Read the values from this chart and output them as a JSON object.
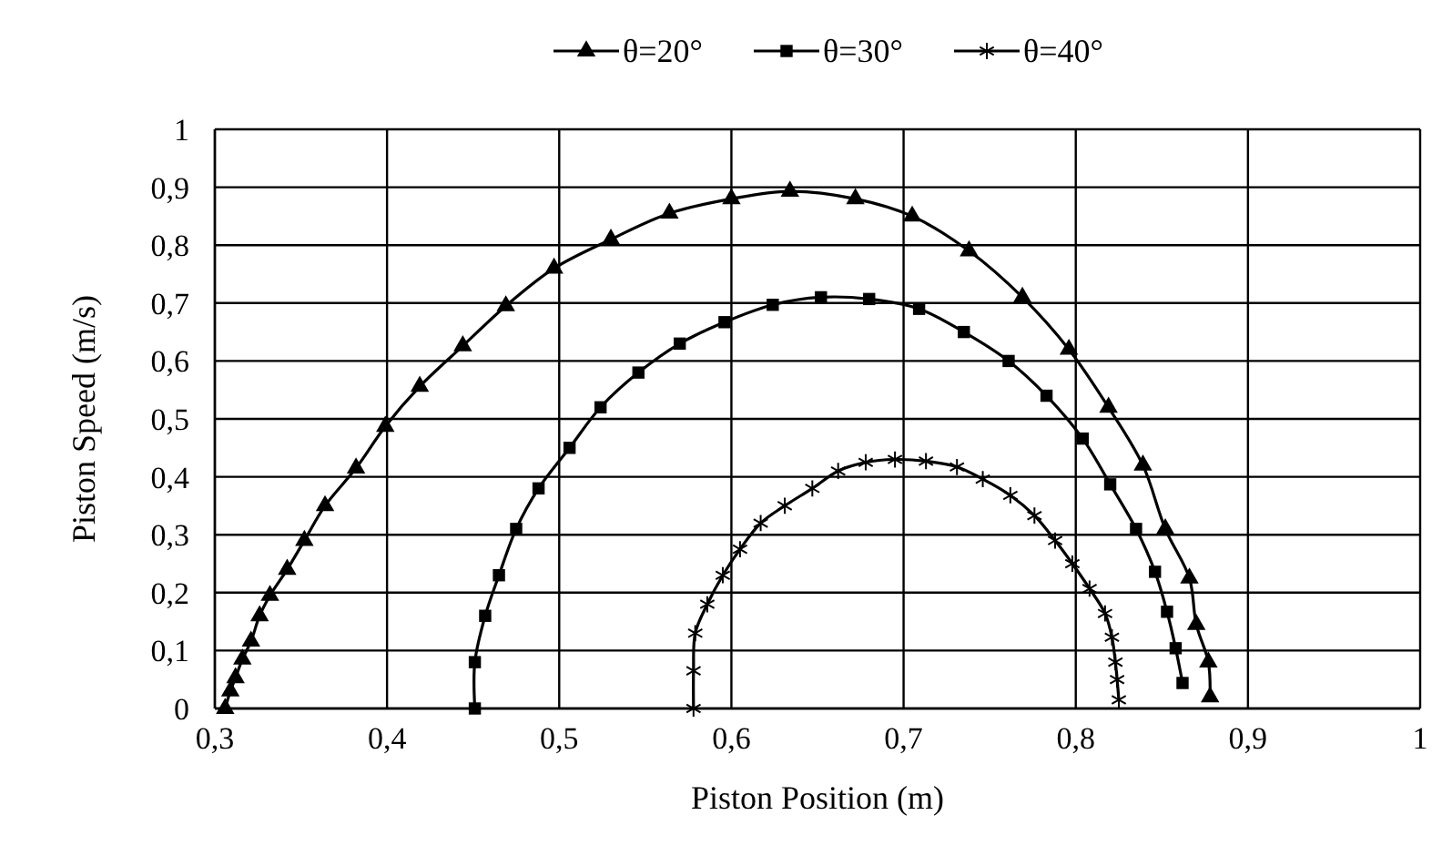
{
  "chart_data": {
    "type": "line",
    "xlabel": "Piston Position (m)",
    "ylabel": "Piston Speed (m/s)",
    "xlim": [
      0.3,
      1
    ],
    "xticks": [
      {
        "value": 0.3,
        "label": "0,3"
      },
      {
        "value": 0.4,
        "label": "0,4"
      },
      {
        "value": 0.5,
        "label": "0,5"
      },
      {
        "value": 0.6,
        "label": "0,6"
      },
      {
        "value": 0.7,
        "label": "0,7"
      },
      {
        "value": 0.8,
        "label": "0,8"
      },
      {
        "value": 0.9,
        "label": "0,9"
      },
      1
    ],
    "ylim": [
      0,
      1
    ],
    "yticks": [
      0,
      {
        "value": 0.1,
        "label": "0,1"
      },
      {
        "value": 0.2,
        "label": "0,2"
      },
      {
        "value": 0.3,
        "label": "0,3"
      },
      {
        "value": 0.4,
        "label": "0,4"
      },
      {
        "value": 0.5,
        "label": "0,5"
      },
      {
        "value": 0.6,
        "label": "0,6"
      },
      {
        "value": 0.7,
        "label": "0,7"
      },
      {
        "value": 0.8,
        "label": "0,8"
      },
      {
        "value": 0.9,
        "label": "0,9"
      },
      1
    ],
    "grid": true,
    "legend": "top",
    "line_style": "solid",
    "series": [
      {
        "name": "θ=20°",
        "color": "#000000",
        "marker": "triangle",
        "x": [
          0.306,
          0.309,
          0.312,
          0.316,
          0.321,
          0.326,
          0.332,
          0.342,
          0.352,
          0.364,
          0.382,
          0.399,
          0.419,
          0.444,
          0.469,
          0.497,
          0.53,
          0.564,
          0.6,
          0.634,
          0.672,
          0.705,
          0.738,
          0.769,
          0.796,
          0.819,
          0.839,
          0.852,
          0.866,
          0.87,
          0.877,
          0.878
        ],
        "values": [
          0,
          0.03,
          0.053,
          0.085,
          0.116,
          0.16,
          0.195,
          0.24,
          0.29,
          0.35,
          0.415,
          0.487,
          0.556,
          0.626,
          0.695,
          0.76,
          0.81,
          0.855,
          0.88,
          0.893,
          0.88,
          0.85,
          0.79,
          0.71,
          0.62,
          0.52,
          0.42,
          0.31,
          0.225,
          0.145,
          0.08,
          0.02
        ]
      },
      {
        "name": "θ=30°",
        "color": "#000000",
        "marker": "square",
        "x": [
          0.451,
          0.451,
          0.457,
          0.465,
          0.475,
          0.488,
          0.506,
          0.524,
          0.546,
          0.57,
          0.596,
          0.624,
          0.652,
          0.68,
          0.709,
          0.735,
          0.761,
          0.783,
          0.804,
          0.82,
          0.835,
          0.846,
          0.853,
          0.858,
          0.862
        ],
        "values": [
          0,
          0.08,
          0.16,
          0.23,
          0.31,
          0.38,
          0.45,
          0.52,
          0.58,
          0.63,
          0.667,
          0.697,
          0.71,
          0.707,
          0.69,
          0.65,
          0.6,
          0.54,
          0.466,
          0.387,
          0.31,
          0.236,
          0.167,
          0.104,
          0.044
        ]
      },
      {
        "name": "θ=40°",
        "color": "#000000",
        "marker": "cross",
        "x": [
          0.578,
          0.578,
          0.579,
          0.586,
          0.595,
          0.605,
          0.617,
          0.631,
          0.647,
          0.662,
          0.678,
          0.695,
          0.713,
          0.731,
          0.746,
          0.762,
          0.776,
          0.788,
          0.798,
          0.808,
          0.817,
          0.821,
          0.823,
          0.824,
          0.825
        ],
        "values": [
          0,
          0.065,
          0.13,
          0.18,
          0.23,
          0.275,
          0.32,
          0.35,
          0.38,
          0.41,
          0.425,
          0.43,
          0.427,
          0.417,
          0.396,
          0.368,
          0.333,
          0.29,
          0.25,
          0.207,
          0.164,
          0.123,
          0.08,
          0.05,
          0.015
        ]
      }
    ]
  }
}
